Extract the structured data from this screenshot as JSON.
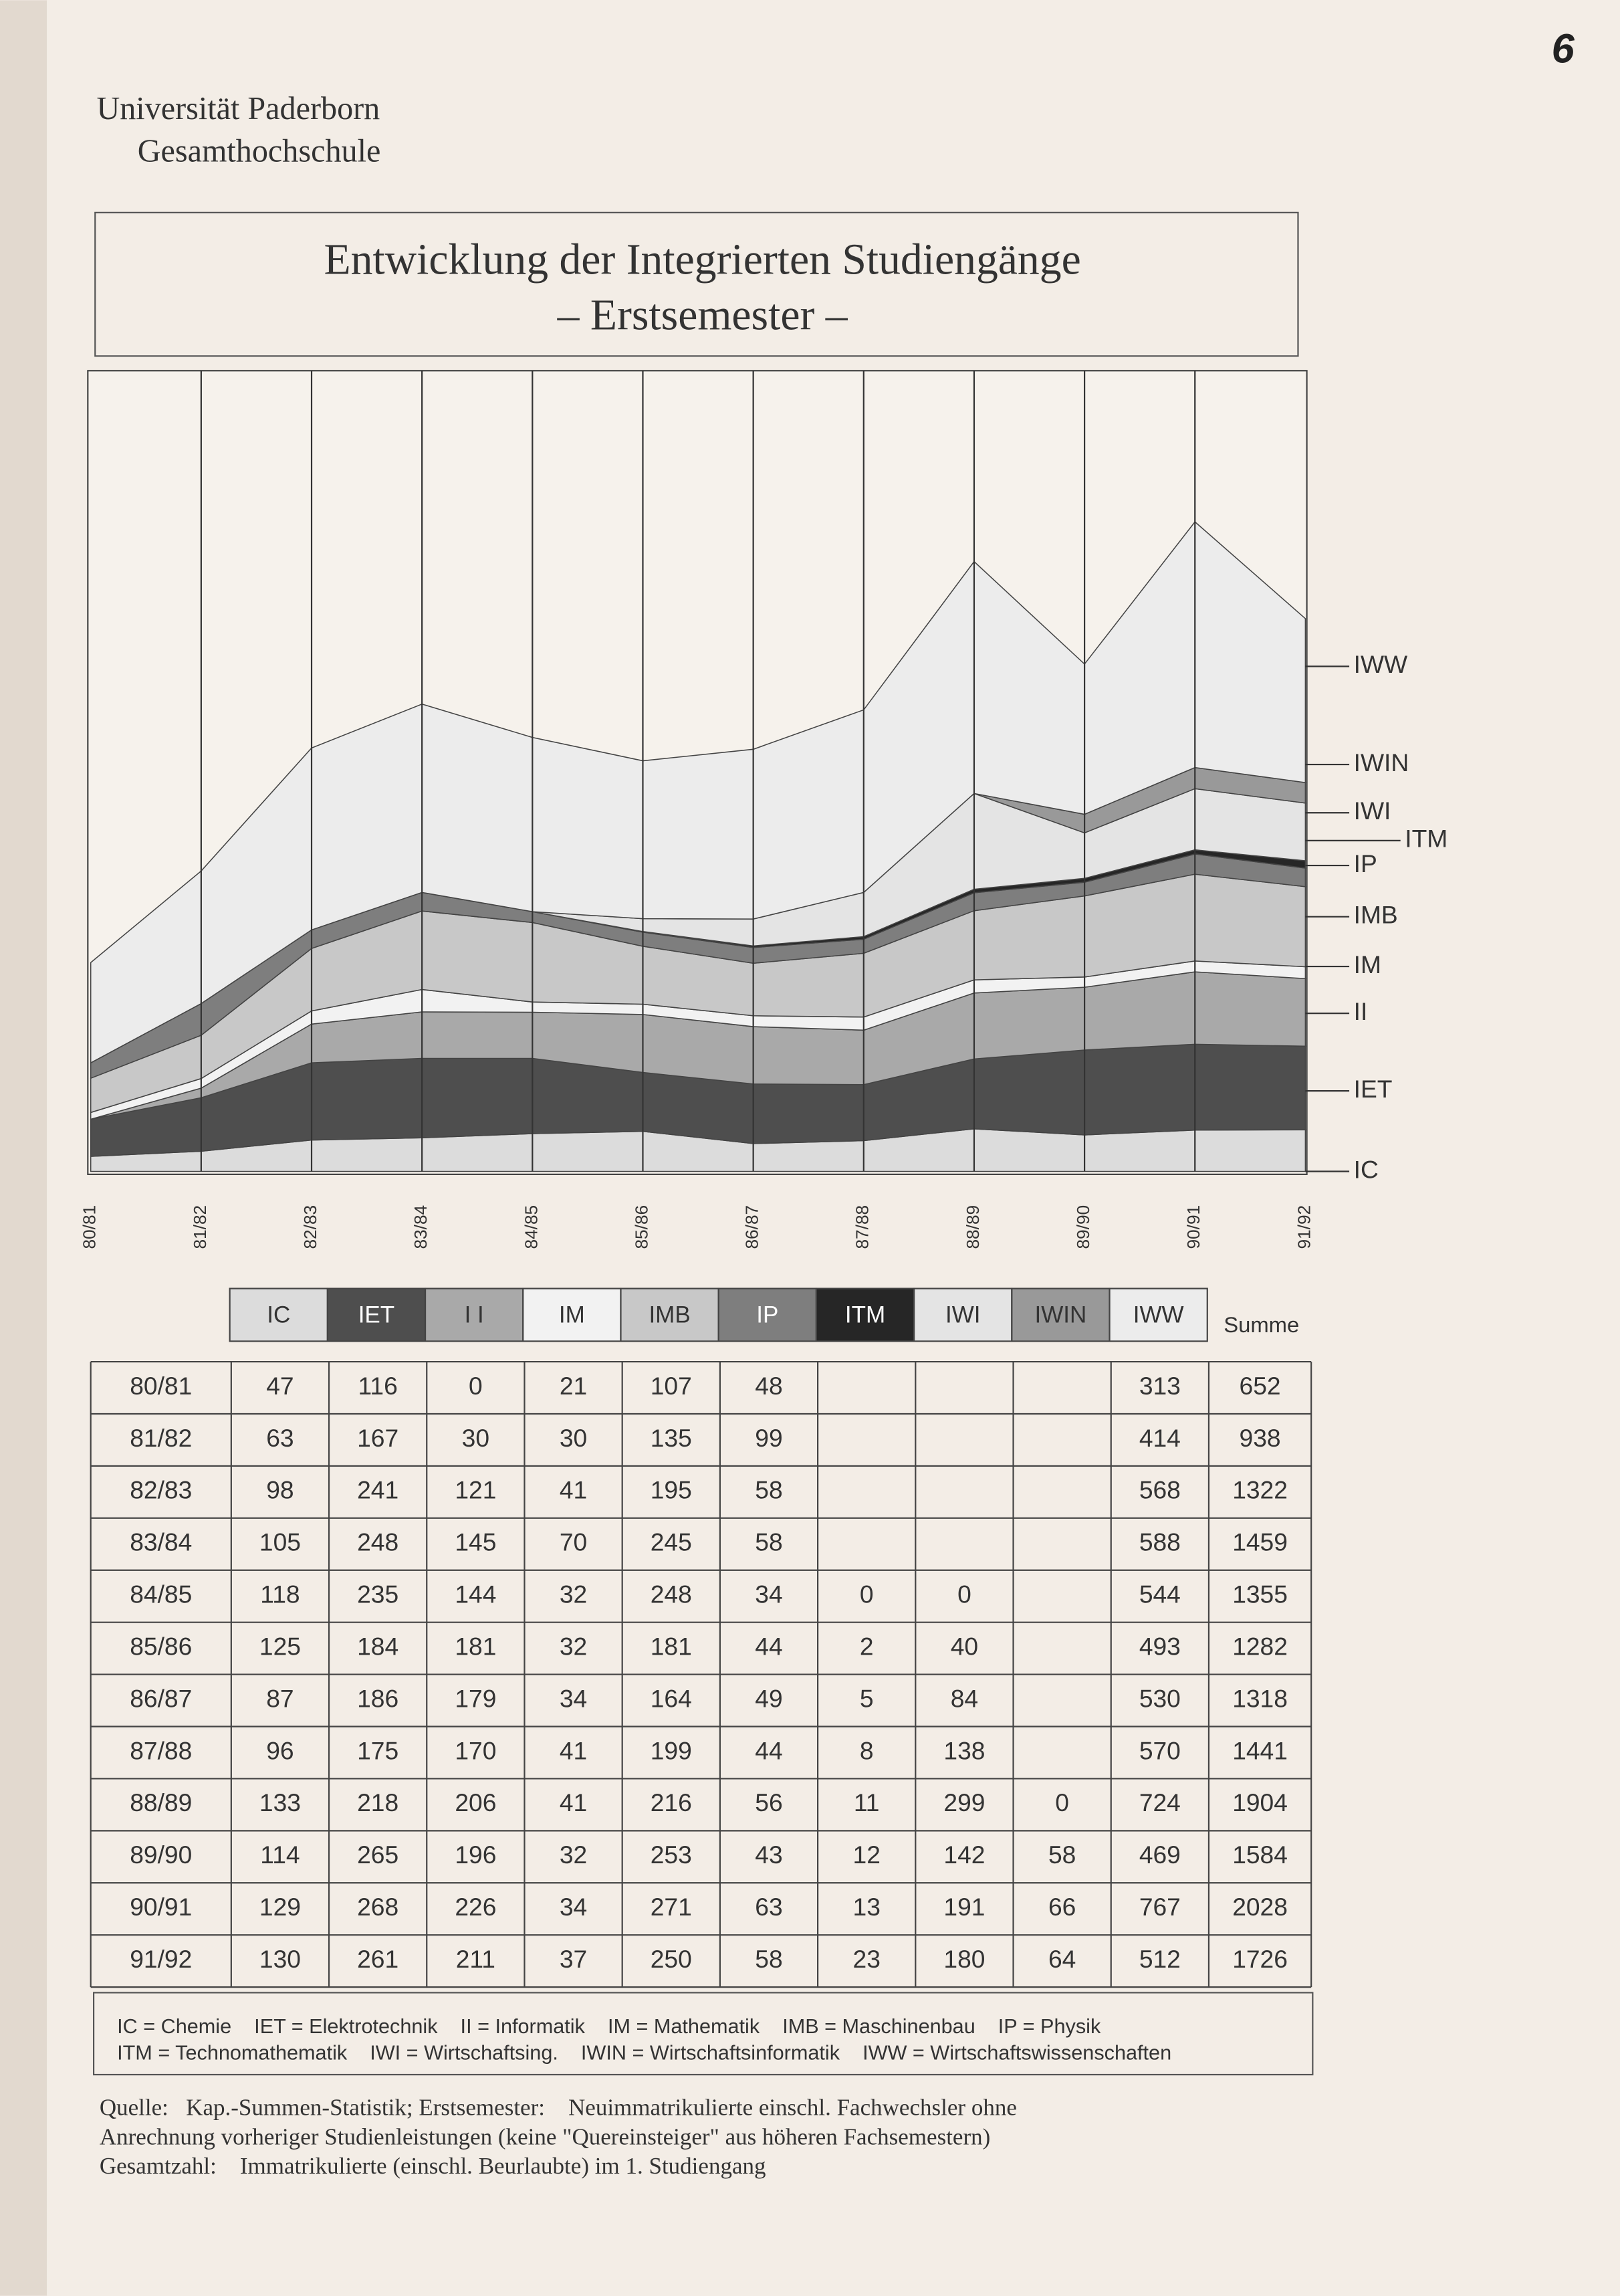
{
  "page_number": "6",
  "header": {
    "line1": "Universität Paderborn",
    "line2": "Gesamthochschule"
  },
  "chart_data": {
    "type": "stacked-area",
    "title": "Entwicklung der Integrierten Studiengänge",
    "subtitle": "– Erstsemester –",
    "categories": [
      "80/81",
      "81/82",
      "82/83",
      "83/84",
      "84/85",
      "85/86",
      "86/87",
      "87/88",
      "88/89",
      "89/90",
      "90/91",
      "91/92"
    ],
    "ylim": [
      0,
      2500
    ],
    "series": [
      {
        "name": "IC",
        "color": "#dcdcdc",
        "values": [
          47,
          63,
          98,
          105,
          118,
          125,
          87,
          96,
          133,
          114,
          129,
          130
        ]
      },
      {
        "name": "IET",
        "color": "#4e4e4e",
        "values": [
          116,
          167,
          241,
          248,
          235,
          184,
          186,
          175,
          218,
          265,
          268,
          261
        ]
      },
      {
        "name": "II",
        "color": "#a9a9a9",
        "values": [
          0,
          30,
          121,
          145,
          144,
          181,
          179,
          170,
          206,
          196,
          226,
          211
        ]
      },
      {
        "name": "IM",
        "color": "#f2f2f2",
        "values": [
          21,
          30,
          41,
          70,
          32,
          32,
          34,
          41,
          41,
          32,
          34,
          37
        ]
      },
      {
        "name": "IMB",
        "color": "#c8c8c8",
        "values": [
          107,
          135,
          195,
          245,
          248,
          181,
          164,
          199,
          216,
          253,
          271,
          250
        ]
      },
      {
        "name": "IP",
        "color": "#7e7e7e",
        "values": [
          48,
          99,
          58,
          58,
          34,
          44,
          49,
          44,
          56,
          43,
          63,
          58
        ]
      },
      {
        "name": "ITM",
        "color": "#262626",
        "values": [
          null,
          null,
          null,
          null,
          0,
          2,
          5,
          8,
          11,
          12,
          13,
          23
        ]
      },
      {
        "name": "IWI",
        "color": "#e4e4e4",
        "values": [
          null,
          null,
          null,
          null,
          0,
          40,
          84,
          138,
          299,
          142,
          191,
          180
        ]
      },
      {
        "name": "IWIN",
        "color": "#999999",
        "values": [
          null,
          null,
          null,
          null,
          null,
          null,
          null,
          null,
          0,
          58,
          66,
          64
        ]
      },
      {
        "name": "IWW",
        "color": "#ececec",
        "values": [
          313,
          414,
          568,
          588,
          544,
          493,
          530,
          570,
          724,
          469,
          767,
          512
        ]
      }
    ],
    "totals": [
      652,
      938,
      1322,
      1459,
      1355,
      1282,
      1318,
      1441,
      1904,
      1584,
      2028,
      1726
    ]
  },
  "table": {
    "header": [
      "IC",
      "IET",
      "I I",
      "IM",
      "IMB",
      "IP",
      "ITM",
      "IWI",
      "IWIN",
      "IWW"
    ],
    "sum_label": "Summe"
  },
  "key": [
    "IC = Chemie    IET = Elektrotechnik    II = Informatik    IM = Mathematik    IMB = Maschinenbau    IP = Physik",
    "ITM = Technomathematik    IWI = Wirtschaftsing.    IWIN = Wirtschaftsinformatik    IWW = Wirtschaftswissenschaften"
  ],
  "source": [
    "Quelle:   Kap.-Summen-Statistik; Erstsemester:    Neuimmatrikulierte einschl. Fachwechsler ohne",
    "Anrechnung vorheriger Studienleistungen (keine \"Quereinsteiger\" aus höheren Fachsemestern)",
    "Gesamtzahl:    Immatrikulierte (einschl. Beurlaubte) im 1. Studiengang"
  ]
}
